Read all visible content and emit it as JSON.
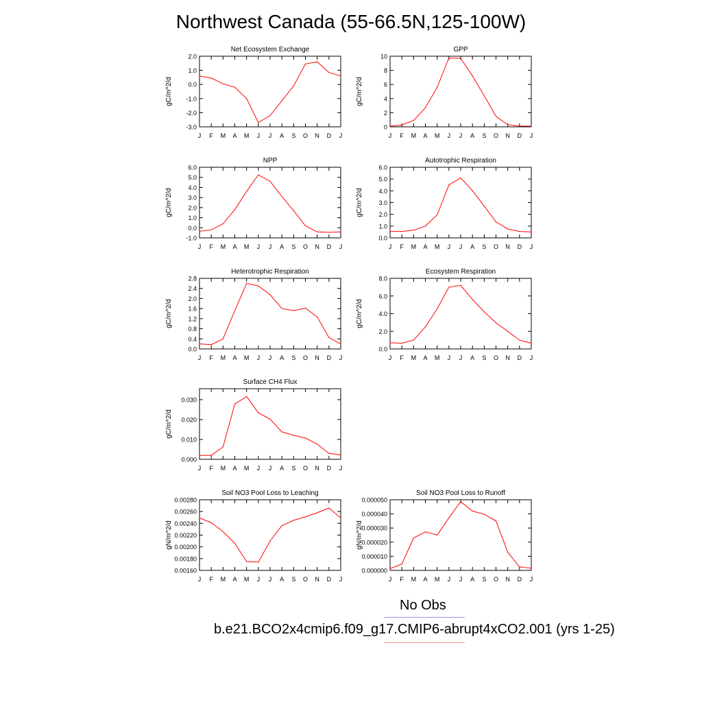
{
  "title": "Northwest Canada (55-66.5N,125-100W)",
  "months": [
    "J",
    "F",
    "M",
    "A",
    "M",
    "J",
    "J",
    "A",
    "S",
    "O",
    "N",
    "D",
    "J"
  ],
  "colors": {
    "model": "#ff0000",
    "obs": "#0000ff"
  },
  "legend": {
    "obs_label": "No Obs",
    "model_label": "b.e21.BCO2x4cmip6.f09_g17.CMIP6-abrupt4xCO2.001 (yrs 1-25)"
  },
  "chart_data": [
    {
      "type": "line",
      "title": "Net Ecosystem Exchange",
      "ylabel": "gC/m^2/d",
      "ylim": [
        -3.0,
        2.0
      ],
      "ticks": [
        "-3.0",
        "-2.0",
        "-1.0",
        "0.0",
        "1.0",
        "2.0"
      ],
      "tick_values": [
        -3,
        -2,
        -1,
        0,
        1,
        2
      ],
      "categories": [
        "J",
        "F",
        "M",
        "A",
        "M",
        "J",
        "J",
        "A",
        "S",
        "O",
        "N",
        "D",
        "J"
      ],
      "values": [
        0.6,
        0.45,
        0.05,
        -0.2,
        -1.0,
        -2.7,
        -2.2,
        -1.15,
        -0.1,
        1.45,
        1.6,
        0.85,
        0.6
      ]
    },
    {
      "type": "line",
      "title": "GPP",
      "ylabel": "gC/m^2/d",
      "ylim": [
        0,
        10
      ],
      "ticks": [
        "0",
        "2",
        "4",
        "6",
        "8",
        "10"
      ],
      "tick_values": [
        0,
        2,
        4,
        6,
        8,
        10
      ],
      "categories": [
        "J",
        "F",
        "M",
        "A",
        "M",
        "J",
        "J",
        "A",
        "S",
        "O",
        "N",
        "D",
        "J"
      ],
      "values": [
        0.1,
        0.25,
        0.9,
        2.7,
        5.6,
        9.75,
        9.7,
        7.2,
        4.4,
        1.5,
        0.3,
        0.1,
        0.1
      ]
    },
    {
      "type": "line",
      "title": "NPP",
      "ylabel": "gC/m^2/d",
      "ylim": [
        -1.0,
        6.0
      ],
      "ticks": [
        "-1.0",
        "0.0",
        "1.0",
        "2.0",
        "3.0",
        "4.0",
        "5.0",
        "6.0"
      ],
      "tick_values": [
        -1,
        0,
        1,
        2,
        3,
        4,
        5,
        6
      ],
      "categories": [
        "J",
        "F",
        "M",
        "A",
        "M",
        "J",
        "J",
        "A",
        "S",
        "O",
        "N",
        "D",
        "J"
      ],
      "values": [
        -0.35,
        -0.2,
        0.4,
        1.8,
        3.6,
        5.25,
        4.6,
        3.1,
        1.7,
        0.2,
        -0.4,
        -0.45,
        -0.4
      ]
    },
    {
      "type": "line",
      "title": "Autotrophic Respiration",
      "ylabel": "gC/m^2/d",
      "ylim": [
        0.0,
        6.0
      ],
      "ticks": [
        "0.0",
        "1.0",
        "2.0",
        "3.0",
        "4.0",
        "5.0",
        "6.0"
      ],
      "tick_values": [
        0,
        1,
        2,
        3,
        4,
        5,
        6
      ],
      "categories": [
        "J",
        "F",
        "M",
        "A",
        "M",
        "J",
        "J",
        "A",
        "S",
        "O",
        "N",
        "D",
        "J"
      ],
      "values": [
        0.55,
        0.55,
        0.65,
        1.0,
        1.95,
        4.5,
        5.1,
        4.0,
        2.7,
        1.35,
        0.75,
        0.55,
        0.5
      ]
    },
    {
      "type": "line",
      "title": "Heterotrophic Respiration",
      "ylabel": "gC/m^2/d",
      "ylim": [
        0.0,
        2.8
      ],
      "ticks": [
        "0.0",
        "0.4",
        "0.8",
        "1.2",
        "1.6",
        "2.0",
        "2.4",
        "2.8"
      ],
      "tick_values": [
        0,
        0.4,
        0.8,
        1.2,
        1.6,
        2.0,
        2.4,
        2.8
      ],
      "categories": [
        "J",
        "F",
        "M",
        "A",
        "M",
        "J",
        "J",
        "A",
        "S",
        "O",
        "N",
        "D",
        "J"
      ],
      "values": [
        0.2,
        0.17,
        0.4,
        1.52,
        2.6,
        2.5,
        2.15,
        1.6,
        1.52,
        1.62,
        1.27,
        0.45,
        0.2
      ]
    },
    {
      "type": "line",
      "title": "Ecosystem Respiration",
      "ylabel": "gC/m^2/d",
      "ylim": [
        0.0,
        8.0
      ],
      "ticks": [
        "0.0",
        "2.0",
        "4.0",
        "6.0",
        "8.0"
      ],
      "tick_values": [
        0,
        2,
        4,
        6,
        8
      ],
      "categories": [
        "J",
        "F",
        "M",
        "A",
        "M",
        "J",
        "J",
        "A",
        "S",
        "O",
        "N",
        "D",
        "J"
      ],
      "values": [
        0.7,
        0.65,
        1.0,
        2.5,
        4.55,
        7.0,
        7.2,
        5.6,
        4.2,
        2.95,
        2.0,
        1.0,
        0.65
      ]
    },
    {
      "type": "line",
      "title": "Surface CH4 Flux",
      "ylabel": "gC/m^2/d",
      "ylim": [
        0.0,
        0.0355
      ],
      "ticks": [
        "0.000",
        "0.010",
        "0.020",
        "0.030"
      ],
      "tick_values": [
        0,
        0.01,
        0.02,
        0.03
      ],
      "categories": [
        "J",
        "F",
        "M",
        "A",
        "M",
        "J",
        "J",
        "A",
        "S",
        "O",
        "N",
        "D",
        "J"
      ],
      "values": [
        0.002,
        0.002,
        0.0062,
        0.0278,
        0.0316,
        0.0234,
        0.0202,
        0.0138,
        0.0121,
        0.0107,
        0.0076,
        0.003,
        0.0022
      ]
    },
    {
      "type": "line",
      "title": "Soil NO3 Pool Loss to Leaching",
      "ylabel": "gN/m^2/d",
      "ylim": [
        0.0016,
        0.0028
      ],
      "ticks": [
        "0.00160",
        "0.00180",
        "0.00200",
        "0.00220",
        "0.00240",
        "0.00260",
        "0.00280"
      ],
      "tick_values": [
        0.0016,
        0.0018,
        0.002,
        0.0022,
        0.0024,
        0.0026,
        0.0028
      ],
      "categories": [
        "J",
        "F",
        "M",
        "A",
        "M",
        "J",
        "J",
        "A",
        "S",
        "O",
        "N",
        "D",
        "J"
      ],
      "values": [
        0.00249,
        0.00241,
        0.00226,
        0.00206,
        0.00175,
        0.00174,
        0.0021,
        0.00236,
        0.00245,
        0.00251,
        0.00258,
        0.00266,
        0.00249
      ]
    },
    {
      "type": "line",
      "title": "Soil NO3 Pool Loss to Runoff",
      "ylabel": "gN/m^2/d",
      "ylim": [
        0.0,
        5e-05
      ],
      "ticks": [
        "0.000000",
        "0.000010",
        "0.000020",
        "0.000030",
        "0.000040",
        "0.000050"
      ],
      "tick_values": [
        0,
        1e-05,
        2e-05,
        3e-05,
        4e-05,
        5e-05
      ],
      "categories": [
        "J",
        "F",
        "M",
        "A",
        "M",
        "J",
        "J",
        "A",
        "S",
        "O",
        "N",
        "D",
        "J"
      ],
      "values": [
        1.2e-06,
        4.5e-06,
        2.29e-05,
        2.73e-05,
        2.5e-05,
        3.72e-05,
        4.87e-05,
        4.2e-05,
        3.97e-05,
        3.5e-05,
        1.28e-05,
        2.5e-06,
        1.5e-06
      ]
    }
  ]
}
